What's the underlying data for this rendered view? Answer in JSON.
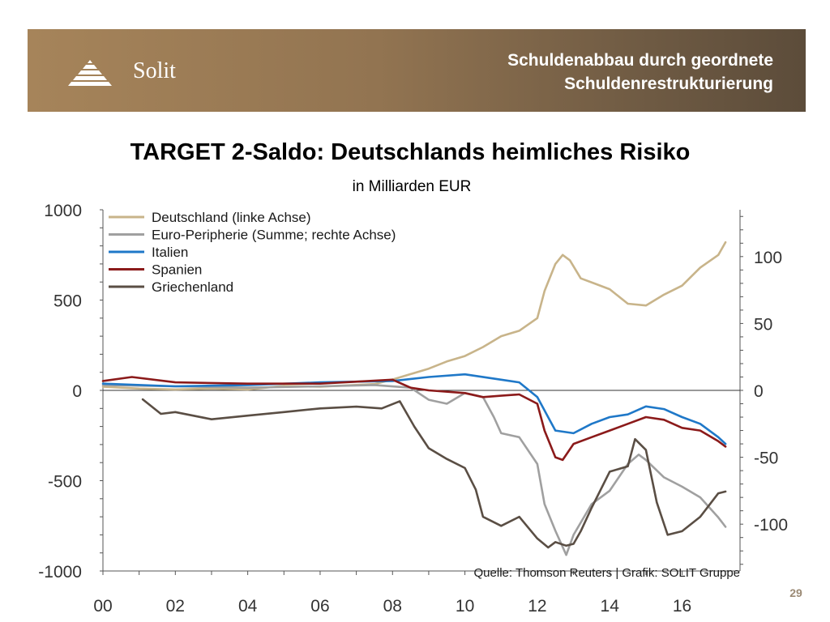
{
  "header": {
    "logo_text": "Solit",
    "title_line1": "Schuldenabbau durch geordnete",
    "title_line2": "Schuldenrestrukturierung"
  },
  "page_number": "29",
  "colors": {
    "banner": "#927451",
    "deutschland": "#c8b48a",
    "peripherie": "#a0a0a0",
    "italien": "#1f78c8",
    "spanien": "#8b1a1a",
    "griechenland": "#5a4e44"
  },
  "chart_data": {
    "type": "line",
    "title": "TARGET 2-Saldo: Deutschlands heimliches Risiko",
    "subtitle": "in Milliarden EUR",
    "source": "Quelle: Thomson Reuters | Grafik: SOLIT Gruppe",
    "x_range": [
      2000,
      2017.6
    ],
    "x_ticks": [
      {
        "value": 2000,
        "label": "00"
      },
      {
        "value": 2002,
        "label": "02"
      },
      {
        "value": 2004,
        "label": "04"
      },
      {
        "value": 2006,
        "label": "06"
      },
      {
        "value": 2008,
        "label": "08"
      },
      {
        "value": 2010,
        "label": "10"
      },
      {
        "value": 2012,
        "label": "12"
      },
      {
        "value": 2014,
        "label": "14"
      },
      {
        "value": 2016,
        "label": "16"
      }
    ],
    "y_left": {
      "range": [
        -1000,
        1000
      ],
      "ticks": [
        1000,
        500,
        0,
        -500,
        -1000
      ]
    },
    "y_right": {
      "range": [
        -135,
        135
      ],
      "ticks": [
        100,
        50,
        0,
        -50,
        -100
      ]
    },
    "legend_position": "top-left",
    "series": [
      {
        "name": "Deutschland (linke Achse)",
        "axis": "left",
        "color": "#c8b48a",
        "points": [
          [
            2000,
            20
          ],
          [
            2001,
            10
          ],
          [
            2002,
            5
          ],
          [
            2003,
            10
          ],
          [
            2004,
            5
          ],
          [
            2005,
            25
          ],
          [
            2006,
            20
          ],
          [
            2007,
            30
          ],
          [
            2007.5,
            35
          ],
          [
            2008,
            60
          ],
          [
            2008.5,
            90
          ],
          [
            2009,
            120
          ],
          [
            2009.5,
            160
          ],
          [
            2010,
            190
          ],
          [
            2010.5,
            240
          ],
          [
            2011,
            300
          ],
          [
            2011.5,
            330
          ],
          [
            2012,
            400
          ],
          [
            2012.2,
            550
          ],
          [
            2012.5,
            700
          ],
          [
            2012.7,
            750
          ],
          [
            2012.9,
            720
          ],
          [
            2013.2,
            620
          ],
          [
            2013.6,
            590
          ],
          [
            2014,
            560
          ],
          [
            2014.5,
            480
          ],
          [
            2015,
            470
          ],
          [
            2015.5,
            530
          ],
          [
            2016,
            580
          ],
          [
            2016.5,
            680
          ],
          [
            2017,
            750
          ],
          [
            2017.2,
            820
          ]
        ]
      },
      {
        "name": "Euro-Peripherie (Summe; rechte Achse)",
        "axis": "right",
        "color": "#a0a0a0",
        "points": [
          [
            2000,
            4
          ],
          [
            2002,
            3
          ],
          [
            2004,
            2
          ],
          [
            2006,
            3
          ],
          [
            2007.5,
            4
          ],
          [
            2008.5,
            2
          ],
          [
            2009,
            -7
          ],
          [
            2009.5,
            -10
          ],
          [
            2010,
            -2
          ],
          [
            2010.5,
            -5
          ],
          [
            2010.8,
            -20
          ],
          [
            2011,
            -32
          ],
          [
            2011.5,
            -35
          ],
          [
            2012,
            -55
          ],
          [
            2012.2,
            -85
          ],
          [
            2012.5,
            -105
          ],
          [
            2012.8,
            -123
          ],
          [
            2013,
            -108
          ],
          [
            2013.5,
            -85
          ],
          [
            2014,
            -75
          ],
          [
            2014.5,
            -55
          ],
          [
            2014.8,
            -48
          ],
          [
            2015,
            -52
          ],
          [
            2015.5,
            -65
          ],
          [
            2016,
            -72
          ],
          [
            2016.5,
            -80
          ],
          [
            2017,
            -95
          ],
          [
            2017.2,
            -102
          ]
        ]
      },
      {
        "name": "Italien",
        "axis": "right",
        "color": "#1f78c8",
        "points": [
          [
            2000,
            5
          ],
          [
            2002,
            3
          ],
          [
            2004,
            4
          ],
          [
            2006,
            6
          ],
          [
            2008,
            7
          ],
          [
            2009,
            10
          ],
          [
            2010,
            12
          ],
          [
            2011,
            8
          ],
          [
            2011.5,
            6
          ],
          [
            2012,
            -5
          ],
          [
            2012.2,
            -15
          ],
          [
            2012.5,
            -30
          ],
          [
            2013,
            -32
          ],
          [
            2013.5,
            -25
          ],
          [
            2014,
            -20
          ],
          [
            2014.5,
            -18
          ],
          [
            2015,
            -12
          ],
          [
            2015.5,
            -14
          ],
          [
            2016,
            -20
          ],
          [
            2016.5,
            -25
          ],
          [
            2017,
            -35
          ],
          [
            2017.2,
            -40
          ]
        ]
      },
      {
        "name": "Spanien",
        "axis": "right",
        "color": "#8b1a1a",
        "points": [
          [
            2000,
            7
          ],
          [
            2000.8,
            10
          ],
          [
            2002,
            6
          ],
          [
            2004,
            5
          ],
          [
            2006,
            5
          ],
          [
            2008,
            8
          ],
          [
            2008.5,
            2
          ],
          [
            2009,
            0
          ],
          [
            2010,
            -2
          ],
          [
            2010.5,
            -5
          ],
          [
            2011,
            -4
          ],
          [
            2011.5,
            -3
          ],
          [
            2012,
            -10
          ],
          [
            2012.2,
            -30
          ],
          [
            2012.5,
            -50
          ],
          [
            2012.7,
            -52
          ],
          [
            2013,
            -40
          ],
          [
            2013.5,
            -35
          ],
          [
            2014,
            -30
          ],
          [
            2014.5,
            -25
          ],
          [
            2015,
            -20
          ],
          [
            2015.5,
            -22
          ],
          [
            2016,
            -28
          ],
          [
            2016.5,
            -30
          ],
          [
            2017,
            -38
          ],
          [
            2017.2,
            -42
          ]
        ]
      },
      {
        "name": "Griechenland",
        "axis": "left",
        "color": "#5a4e44",
        "points": [
          [
            2001.1,
            -50
          ],
          [
            2001.6,
            -130
          ],
          [
            2002,
            -120
          ],
          [
            2003,
            -160
          ],
          [
            2004,
            -140
          ],
          [
            2005,
            -120
          ],
          [
            2006,
            -100
          ],
          [
            2007,
            -90
          ],
          [
            2007.7,
            -100
          ],
          [
            2008.2,
            -60
          ],
          [
            2008.6,
            -200
          ],
          [
            2009,
            -320
          ],
          [
            2009.5,
            -380
          ],
          [
            2010,
            -430
          ],
          [
            2010.3,
            -550
          ],
          [
            2010.5,
            -700
          ],
          [
            2011,
            -750
          ],
          [
            2011.5,
            -700
          ],
          [
            2012,
            -820
          ],
          [
            2012.3,
            -870
          ],
          [
            2012.5,
            -840
          ],
          [
            2012.8,
            -860
          ],
          [
            2013,
            -850
          ],
          [
            2013.2,
            -780
          ],
          [
            2013.5,
            -650
          ],
          [
            2014,
            -450
          ],
          [
            2014.5,
            -420
          ],
          [
            2014.7,
            -270
          ],
          [
            2015,
            -330
          ],
          [
            2015.3,
            -620
          ],
          [
            2015.6,
            -800
          ],
          [
            2016,
            -780
          ],
          [
            2016.5,
            -700
          ],
          [
            2017,
            -570
          ],
          [
            2017.2,
            -560
          ]
        ]
      }
    ]
  }
}
